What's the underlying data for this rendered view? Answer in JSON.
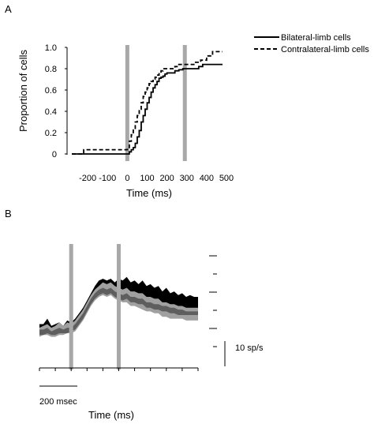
{
  "panel_a_label": "A",
  "panel_b_label": "B",
  "chart_data": [
    {
      "type": "line",
      "panel": "A",
      "title": "",
      "xlabel": "Time (ms)",
      "ylabel": "Proportion of cells",
      "xlim": [
        -300,
        500
      ],
      "ylim": [
        0,
        1.0
      ],
      "xticks": [
        -200,
        -100,
        0,
        100,
        200,
        300,
        400,
        500
      ],
      "xtick_labels": [
        "-200",
        "-100",
        "0",
        "100",
        "200",
        "300",
        "400",
        "500"
      ],
      "yticks": [
        0,
        0.2,
        0.4,
        0.6,
        0.8,
        1.0
      ],
      "ytick_labels": [
        "0",
        "0.2",
        "0.4",
        "0.6",
        "0.8",
        "1.0"
      ],
      "vertical_markers": [
        0,
        290
      ],
      "marker_color": "#a8a8a8",
      "grid": false,
      "legend_position": "top-right",
      "series": [
        {
          "name": "Bilateral-limb cells",
          "style": "solid",
          "color": "#000000",
          "x": [
            -280,
            0,
            10,
            20,
            30,
            40,
            50,
            60,
            70,
            80,
            90,
            100,
            110,
            120,
            130,
            140,
            150,
            160,
            170,
            180,
            190,
            200,
            220,
            240,
            260,
            280,
            300,
            340,
            360,
            380,
            480
          ],
          "y": [
            0.0,
            0.0,
            0.02,
            0.04,
            0.06,
            0.1,
            0.16,
            0.22,
            0.3,
            0.36,
            0.42,
            0.48,
            0.53,
            0.58,
            0.62,
            0.65,
            0.68,
            0.71,
            0.72,
            0.73,
            0.75,
            0.76,
            0.76,
            0.78,
            0.79,
            0.8,
            0.8,
            0.8,
            0.82,
            0.84,
            0.84
          ]
        },
        {
          "name": "Contralateral-limb cells",
          "style": "dashed",
          "color": "#000000",
          "x": [
            -280,
            -220,
            -200,
            -10,
            0,
            10,
            20,
            30,
            40,
            50,
            60,
            70,
            80,
            90,
            100,
            110,
            120,
            130,
            140,
            150,
            160,
            170,
            180,
            200,
            220,
            240,
            260,
            300,
            340,
            370,
            400,
            430,
            480
          ],
          "y": [
            0.0,
            0.04,
            0.04,
            0.04,
            0.06,
            0.12,
            0.18,
            0.24,
            0.3,
            0.36,
            0.42,
            0.48,
            0.54,
            0.58,
            0.62,
            0.66,
            0.68,
            0.7,
            0.72,
            0.74,
            0.76,
            0.78,
            0.8,
            0.8,
            0.8,
            0.82,
            0.84,
            0.84,
            0.86,
            0.88,
            0.92,
            0.96,
            0.96
          ]
        }
      ]
    },
    {
      "type": "area",
      "panel": "B",
      "title": "",
      "xlabel": "Time (ms)",
      "ylabel": "",
      "time_scalebar_label": "200 msec",
      "rate_scalebar_label": "10 sp/s",
      "time_scalebar_ms": 200,
      "rate_scalebar_sps": 10,
      "xlim": [
        -200,
        800
      ],
      "ylim": [
        0,
        60
      ],
      "xtick_ms": [
        -200,
        -100,
        0,
        100,
        200,
        300,
        400,
        500,
        600,
        700,
        800
      ],
      "right_axis_ticks": [
        10,
        20,
        30,
        40,
        50,
        60
      ],
      "vertical_markers": [
        0,
        300
      ],
      "marker_color": "#a8a8a8",
      "grid": false,
      "series": [
        {
          "name": "",
          "color": "#000000",
          "x": [
            -200,
            -175,
            -150,
            -125,
            -100,
            -75,
            -50,
            -25,
            0,
            25,
            50,
            75,
            100,
            125,
            150,
            175,
            200,
            225,
            250,
            275,
            300,
            325,
            350,
            375,
            400,
            425,
            450,
            475,
            500,
            525,
            550,
            575,
            600,
            625,
            650,
            675,
            700,
            725,
            750,
            775,
            800
          ],
          "upper": [
            25,
            25,
            28,
            24,
            25,
            26,
            24,
            27,
            26,
            28,
            31,
            34,
            38,
            42,
            46,
            49,
            50,
            49,
            50,
            48,
            50,
            49,
            51,
            48,
            49,
            47,
            49,
            46,
            47,
            45,
            46,
            43,
            45,
            42,
            43,
            41,
            42,
            40,
            41,
            40,
            40
          ],
          "lower": [
            20,
            20,
            21,
            20,
            20,
            21,
            20,
            21,
            21,
            23,
            26,
            29,
            33,
            37,
            40,
            43,
            44,
            43,
            44,
            43,
            42,
            42,
            43,
            41,
            41,
            40,
            40,
            38,
            38,
            37,
            37,
            35,
            35,
            34,
            34,
            33,
            33,
            32,
            32,
            32,
            32
          ]
        },
        {
          "name": "",
          "color": "#a0a0a0",
          "x": [
            -200,
            -175,
            -150,
            -125,
            -100,
            -75,
            -50,
            -25,
            0,
            25,
            50,
            75,
            100,
            125,
            150,
            175,
            200,
            225,
            250,
            275,
            300,
            325,
            350,
            375,
            400,
            425,
            450,
            475,
            500,
            525,
            550,
            575,
            600,
            625,
            650,
            675,
            700,
            725,
            750,
            775,
            800
          ],
          "upper": [
            23,
            24,
            25,
            23,
            24,
            26,
            24,
            26,
            25,
            27,
            30,
            33,
            37,
            41,
            44,
            46,
            48,
            47,
            48,
            46,
            45,
            44,
            45,
            43,
            43,
            42,
            42,
            40,
            40,
            39,
            39,
            37,
            37,
            36,
            36,
            35,
            35,
            34,
            34,
            34,
            34
          ],
          "lower": [
            18,
            19,
            19,
            18,
            18,
            19,
            19,
            20,
            20,
            21,
            24,
            27,
            31,
            35,
            38,
            40,
            41,
            40,
            41,
            39,
            38,
            37,
            37,
            35,
            35,
            34,
            33,
            32,
            32,
            31,
            31,
            29,
            29,
            28,
            28,
            28,
            28,
            27,
            27,
            27,
            27
          ]
        },
        {
          "name": "",
          "color": "#5e5e5e",
          "x": [
            -200,
            -175,
            -150,
            -125,
            -100,
            -75,
            -50,
            -25,
            0,
            25,
            50,
            75,
            100,
            125,
            150,
            175,
            200,
            225,
            250,
            275,
            300,
            325,
            350,
            375,
            400,
            425,
            450,
            475,
            500,
            525,
            550,
            575,
            600,
            625,
            650,
            675,
            700,
            725,
            750,
            775,
            800
          ],
          "upper": [
            22,
            22,
            23,
            21,
            22,
            23,
            22,
            23,
            23,
            25,
            28,
            31,
            35,
            39,
            42,
            44,
            45,
            44,
            45,
            43,
            42,
            41,
            42,
            40,
            40,
            39,
            39,
            37,
            37,
            36,
            36,
            35,
            35,
            34,
            34,
            33,
            33,
            32,
            32,
            32,
            32
          ],
          "lower": [
            19,
            19,
            20,
            19,
            19,
            20,
            20,
            20,
            21,
            22,
            25,
            28,
            32,
            36,
            39,
            41,
            42,
            41,
            42,
            40,
            39,
            38,
            39,
            37,
            37,
            36,
            36,
            34,
            34,
            33,
            33,
            32,
            32,
            31,
            31,
            30,
            30,
            30,
            30,
            30,
            30
          ]
        }
      ]
    }
  ]
}
